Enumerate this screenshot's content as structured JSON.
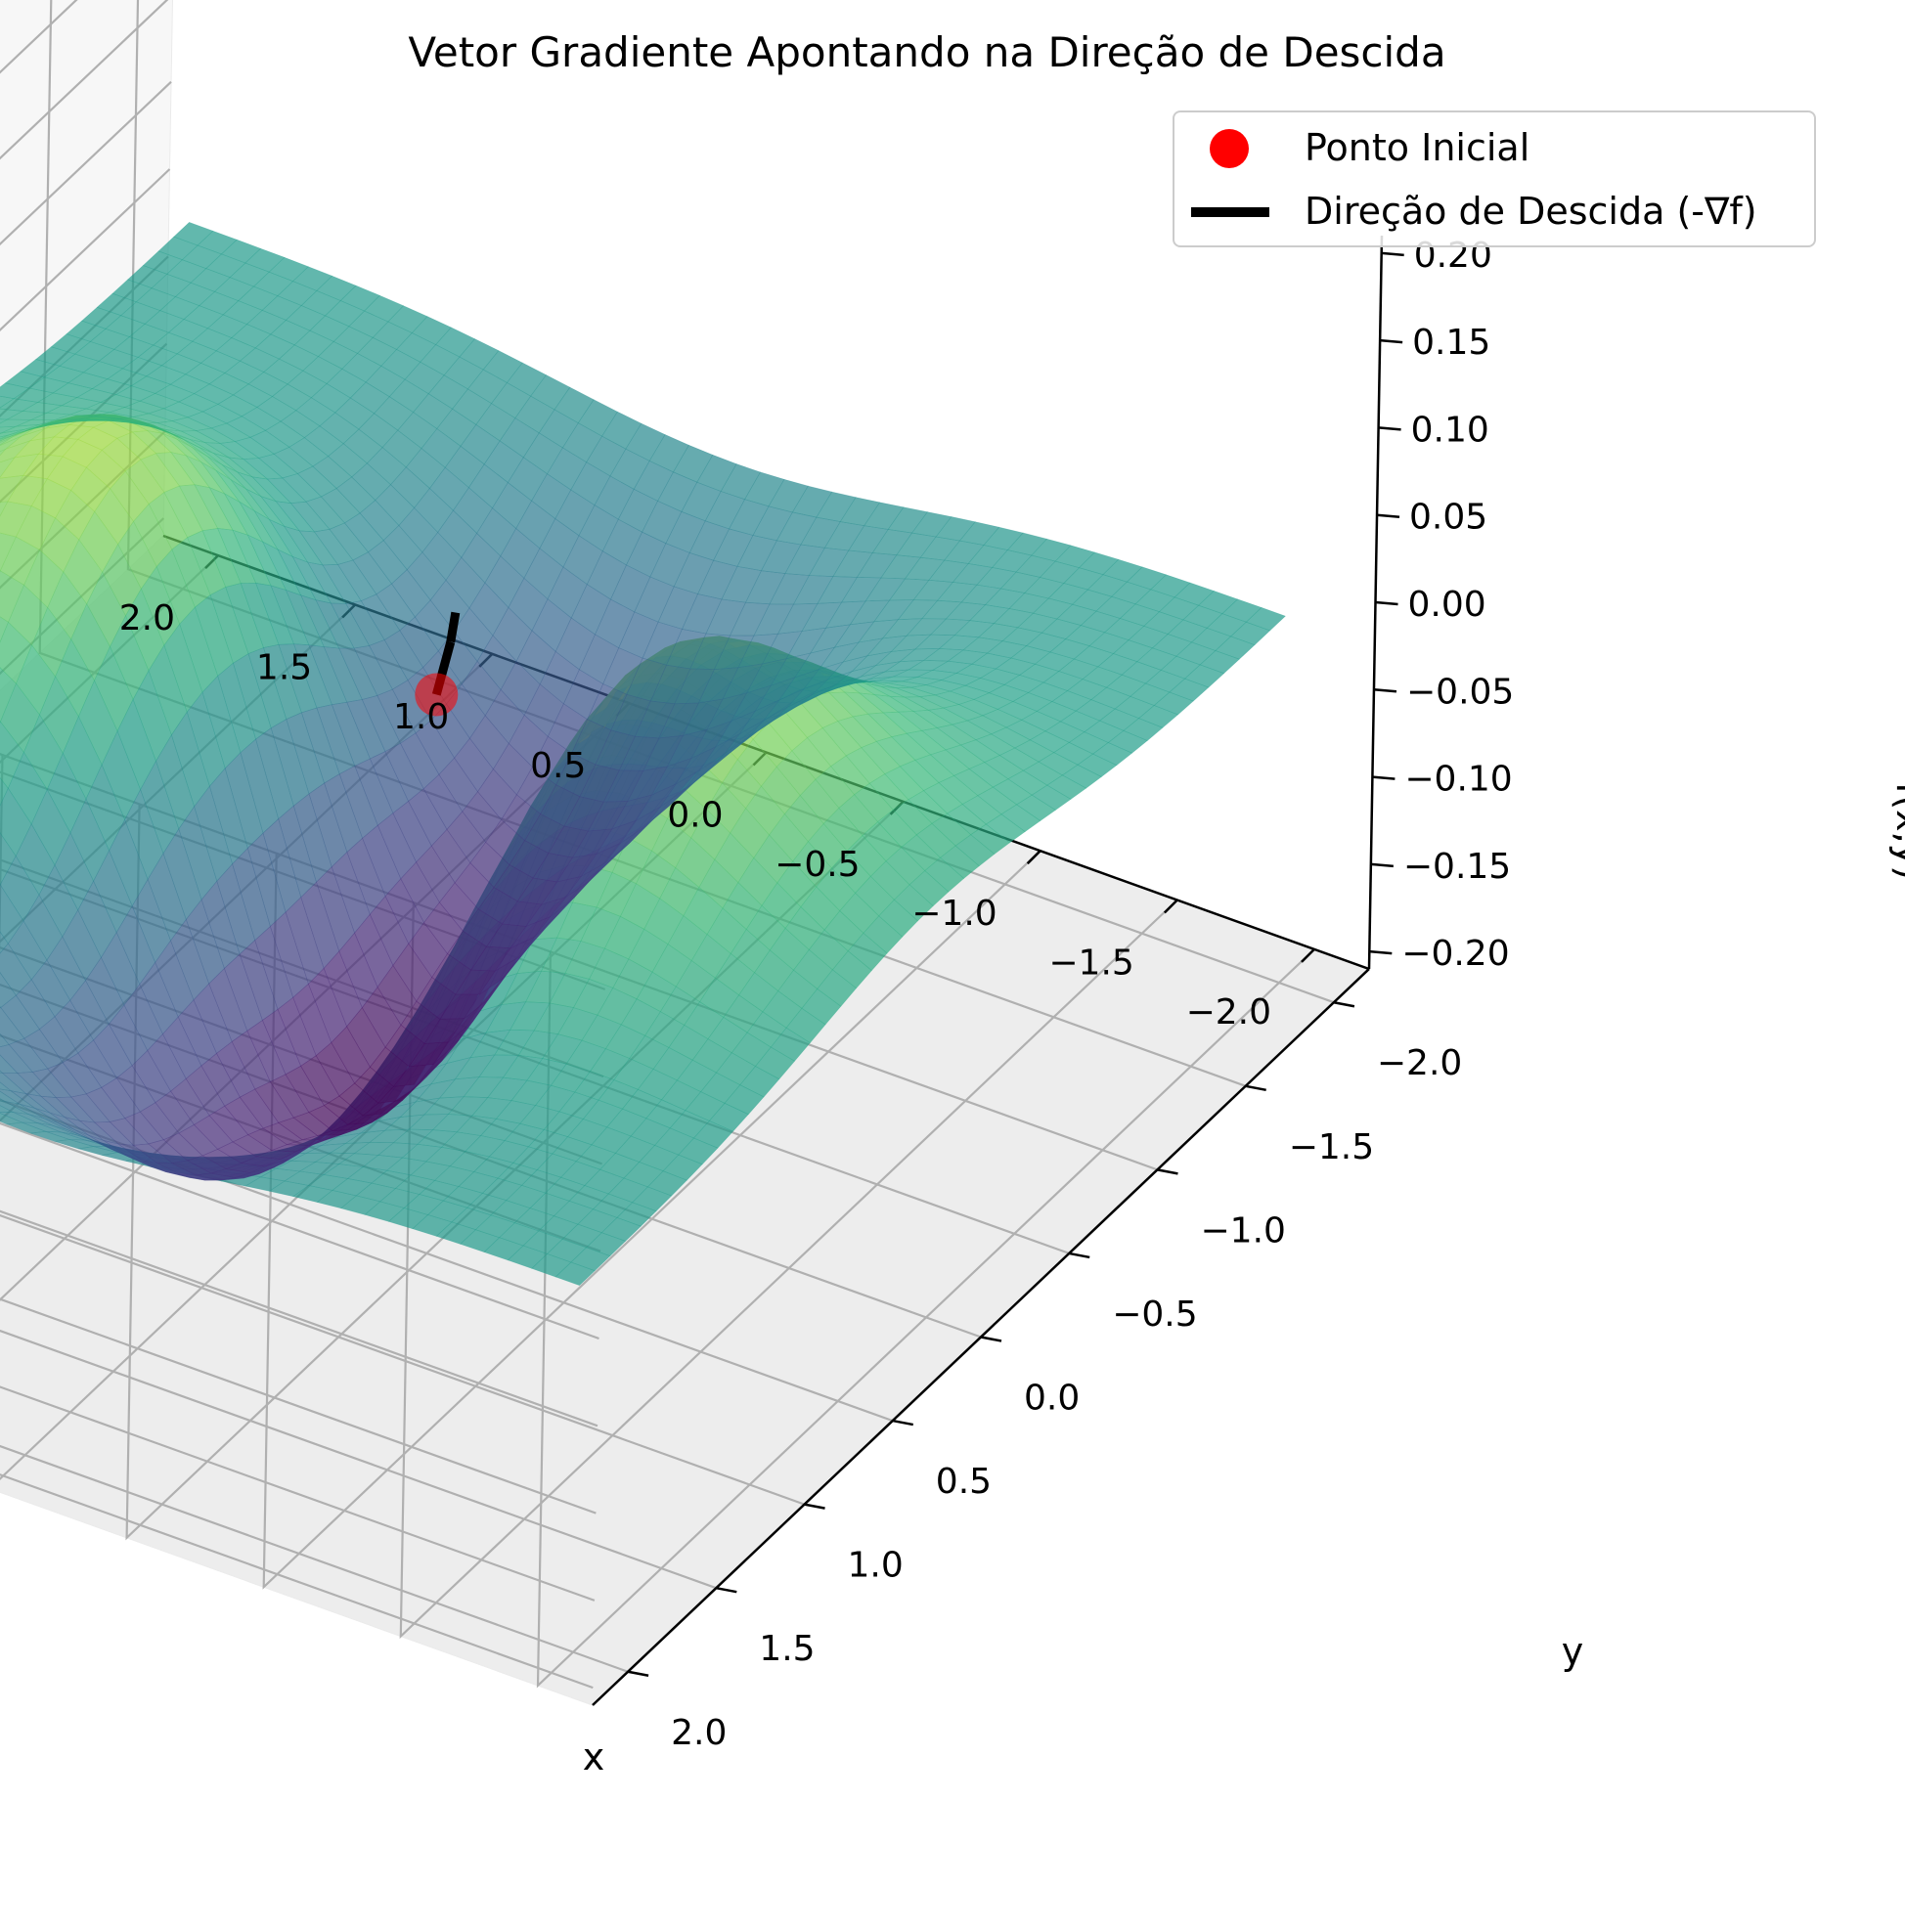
{
  "chart_data": {
    "type": "surface3d",
    "title": "Vetor Gradiente Apontando na Direção de Descida",
    "xlabel": "x",
    "ylabel": "y",
    "zlabel": "f(x,y)",
    "xlim": [
      -2.2,
      2.2
    ],
    "ylim": [
      -2.2,
      2.2
    ],
    "zlim": [
      -0.21,
      0.21
    ],
    "xticks": [
      -2.0,
      -1.5,
      -1.0,
      -0.5,
      0.0,
      0.5,
      1.0,
      1.5,
      2.0
    ],
    "yticks": [
      -2.0,
      -1.5,
      -1.0,
      -0.5,
      0.0,
      0.5,
      1.0,
      1.5,
      2.0
    ],
    "zticks": [
      -0.2,
      -0.15,
      -0.1,
      -0.05,
      0.0,
      0.05,
      0.1,
      0.15,
      0.2
    ],
    "xtick_labels": [
      "−2.0",
      "−1.5",
      "−1.0",
      "−0.5",
      "0.0",
      "0.5",
      "1.0",
      "1.5",
      "2.0"
    ],
    "ytick_labels": [
      "−2.0",
      "−1.5",
      "−1.0",
      "−0.5",
      "0.0",
      "0.5",
      "1.0",
      "1.5",
      "2.0"
    ],
    "ztick_labels": [
      "−0.20",
      "−0.15",
      "−0.10",
      "−0.05",
      "0.00",
      "0.05",
      "0.10",
      "0.15",
      "0.20"
    ],
    "grid": true,
    "colormap": "viridis",
    "surface_alpha": 0.7,
    "surface": {
      "x_range": [
        -2,
        2
      ],
      "y_range": [
        -2,
        2
      ],
      "z_range": [
        -0.2,
        0.17
      ],
      "extrema": [
        {
          "x": 0.0,
          "y": 0.0,
          "z": -0.2
        },
        {
          "x": 1.0,
          "y": 0.0,
          "z": 0.17
        },
        {
          "x": -1.0,
          "y": 0.0,
          "z": 0.17
        },
        {
          "x": 0.0,
          "y": 1.0,
          "z": -0.06
        },
        {
          "x": 0.0,
          "y": -1.0,
          "z": -0.06
        }
      ]
    },
    "initial_point": {
      "x": -0.5,
      "y": 0.5,
      "z": 0.11
    },
    "descent_direction": {
      "dx": -0.13,
      "dy": 0.13,
      "dz": 0.05
    },
    "legend": {
      "placement": "upper right",
      "entries": [
        {
          "label": "Ponto Inicial",
          "color": "#ff0000",
          "marker": "circle"
        },
        {
          "label": "Direção de Descida (-∇f)",
          "color": "#000000",
          "marker": "line"
        }
      ]
    }
  }
}
